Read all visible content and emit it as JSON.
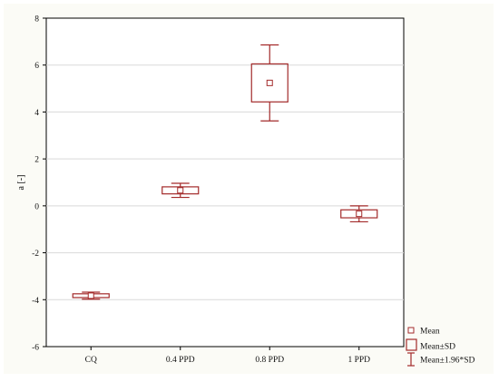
{
  "chart_data": {
    "type": "box",
    "categories": [
      "CQ",
      "0.4 PPD",
      "0.8 PPD",
      "1 PPD"
    ],
    "mean": [
      -3.83,
      0.66,
      5.24,
      -0.34
    ],
    "sd_low": [
      -3.91,
      0.51,
      4.43,
      -0.51
    ],
    "sd_high": [
      -3.75,
      0.81,
      6.05,
      -0.17
    ],
    "ci_low": [
      -3.98,
      0.36,
      3.62,
      -0.68
    ],
    "ci_high": [
      -3.68,
      0.96,
      6.86,
      0.0
    ],
    "ylabel": "a [-]",
    "ylim": [
      -6,
      8
    ],
    "yticks": [
      -6,
      -4,
      -2,
      0,
      2,
      4,
      6,
      8
    ],
    "grid": true,
    "color": "#a32a2a",
    "legend": {
      "placement": "bottom-right",
      "items": [
        {
          "label": "Mean",
          "symbol": "small-square"
        },
        {
          "label": "Mean±SD",
          "symbol": "box"
        },
        {
          "label": "Mean±1.96*SD",
          "symbol": "whisker"
        }
      ]
    }
  }
}
